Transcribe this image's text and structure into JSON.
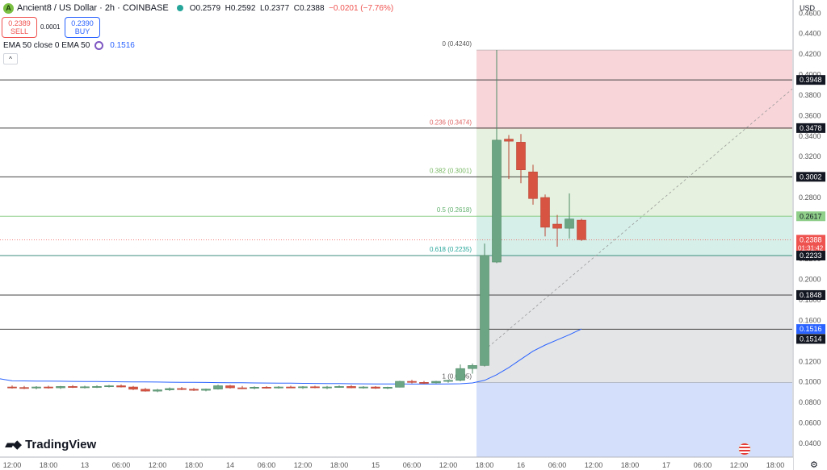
{
  "header": {
    "logo_letter": "A",
    "symbol": "Ancient8 / US Dollar · 2h · COINBASE",
    "open": "O0.2579",
    "high": "H0.2592",
    "low": "L0.2377",
    "close": "C0.2388",
    "change": "−0.0201 (−7.76%)"
  },
  "trade": {
    "sell_price": "0.2389",
    "sell_label": "SELL",
    "spread": "0.0001",
    "buy_price": "0.2390",
    "buy_label": "BUY"
  },
  "indicator": {
    "label": "EMA 50 close 0 EMA 50",
    "value": "0.1516"
  },
  "icons": [
    "eye-icon",
    "chevron-up-icon",
    "settings-icon",
    "flag-icon"
  ],
  "branding": {
    "name": "TradingView"
  },
  "currency": "USD",
  "colors": {
    "up": "#6ba583",
    "down": "#d75442",
    "ema": "#2962ff",
    "accent": "#2962ff"
  },
  "chart_data": {
    "type": "candlestick",
    "title": "Ancient8 / US Dollar · 2h · COINBASE",
    "y_unit": "USD",
    "ylim": [
      0.0297,
      0.4697
    ],
    "y_ticks": [
      "0.4600",
      "0.4400",
      "0.4200",
      "0.4000",
      "0.3800",
      "0.3600",
      "0.3400",
      "0.3200",
      "0.3000",
      "0.2800",
      "0.2600",
      "0.2400",
      "0.2200",
      "0.2000",
      "0.1800",
      "0.1600",
      "0.1400",
      "0.1200",
      "0.1000",
      "0.0800",
      "0.0600",
      "0.0400"
    ],
    "x_ticks": [
      "12:00",
      "18:00",
      "13",
      "06:00",
      "12:00",
      "18:00",
      "14",
      "06:00",
      "12:00",
      "18:00",
      "15",
      "06:00",
      "12:00",
      "18:00",
      "16",
      "06:00",
      "12:00",
      "18:00",
      "17",
      "06:00",
      "12:00",
      "18:00"
    ],
    "candles": [
      {
        "o": 0.095,
        "h": 0.0965,
        "l": 0.0935,
        "c": 0.0945
      },
      {
        "o": 0.0945,
        "h": 0.096,
        "l": 0.093,
        "c": 0.094
      },
      {
        "o": 0.094,
        "h": 0.0958,
        "l": 0.0928,
        "c": 0.095
      },
      {
        "o": 0.095,
        "h": 0.0962,
        "l": 0.0935,
        "c": 0.0942
      },
      {
        "o": 0.0942,
        "h": 0.096,
        "l": 0.0932,
        "c": 0.0955
      },
      {
        "o": 0.0955,
        "h": 0.0968,
        "l": 0.094,
        "c": 0.0948
      },
      {
        "o": 0.0948,
        "h": 0.0962,
        "l": 0.0936,
        "c": 0.0952
      },
      {
        "o": 0.0952,
        "h": 0.0966,
        "l": 0.094,
        "c": 0.0955
      },
      {
        "o": 0.0955,
        "h": 0.097,
        "l": 0.0945,
        "c": 0.0962
      },
      {
        "o": 0.0962,
        "h": 0.0975,
        "l": 0.0945,
        "c": 0.095
      },
      {
        "o": 0.095,
        "h": 0.096,
        "l": 0.092,
        "c": 0.0928
      },
      {
        "o": 0.0928,
        "h": 0.094,
        "l": 0.0905,
        "c": 0.091
      },
      {
        "o": 0.091,
        "h": 0.0932,
        "l": 0.09,
        "c": 0.0922
      },
      {
        "o": 0.0922,
        "h": 0.0945,
        "l": 0.0912,
        "c": 0.0935
      },
      {
        "o": 0.0935,
        "h": 0.095,
        "l": 0.092,
        "c": 0.0928
      },
      {
        "o": 0.0928,
        "h": 0.094,
        "l": 0.0912,
        "c": 0.0918
      },
      {
        "o": 0.0918,
        "h": 0.0935,
        "l": 0.0908,
        "c": 0.093
      },
      {
        "o": 0.093,
        "h": 0.0972,
        "l": 0.0925,
        "c": 0.0962
      },
      {
        "o": 0.0962,
        "h": 0.097,
        "l": 0.0935,
        "c": 0.0942
      },
      {
        "o": 0.0942,
        "h": 0.096,
        "l": 0.093,
        "c": 0.0938
      },
      {
        "o": 0.0938,
        "h": 0.0956,
        "l": 0.0928,
        "c": 0.0948
      },
      {
        "o": 0.0948,
        "h": 0.0958,
        "l": 0.0936,
        "c": 0.0944
      },
      {
        "o": 0.0944,
        "h": 0.0958,
        "l": 0.0935,
        "c": 0.095
      },
      {
        "o": 0.095,
        "h": 0.0962,
        "l": 0.094,
        "c": 0.0945
      },
      {
        "o": 0.0945,
        "h": 0.0958,
        "l": 0.0932,
        "c": 0.0952
      },
      {
        "o": 0.0952,
        "h": 0.0962,
        "l": 0.0938,
        "c": 0.0944
      },
      {
        "o": 0.0944,
        "h": 0.096,
        "l": 0.093,
        "c": 0.095
      },
      {
        "o": 0.095,
        "h": 0.0965,
        "l": 0.0942,
        "c": 0.0955
      },
      {
        "o": 0.0955,
        "h": 0.0968,
        "l": 0.0938,
        "c": 0.0942
      },
      {
        "o": 0.0942,
        "h": 0.0958,
        "l": 0.0935,
        "c": 0.095
      },
      {
        "o": 0.095,
        "h": 0.0958,
        "l": 0.0932,
        "c": 0.0938
      },
      {
        "o": 0.0938,
        "h": 0.0952,
        "l": 0.093,
        "c": 0.0948
      },
      {
        "o": 0.0948,
        "h": 0.101,
        "l": 0.0945,
        "c": 0.1005
      },
      {
        "o": 0.1005,
        "h": 0.102,
        "l": 0.0985,
        "c": 0.0995
      },
      {
        "o": 0.0995,
        "h": 0.1008,
        "l": 0.098,
        "c": 0.099
      },
      {
        "o": 0.099,
        "h": 0.101,
        "l": 0.0985,
        "c": 0.1005
      },
      {
        "o": 0.1005,
        "h": 0.102,
        "l": 0.0992,
        "c": 0.1015
      },
      {
        "o": 0.1015,
        "h": 0.117,
        "l": 0.1005,
        "c": 0.113
      },
      {
        "o": 0.113,
        "h": 0.118,
        "l": 0.108,
        "c": 0.116
      },
      {
        "o": 0.116,
        "h": 0.235,
        "l": 0.115,
        "c": 0.2235
      },
      {
        "o": 0.217,
        "h": 0.424,
        "l": 0.216,
        "c": 0.336
      },
      {
        "o": 0.337,
        "h": 0.341,
        "l": 0.298,
        "c": 0.335
      },
      {
        "o": 0.334,
        "h": 0.342,
        "l": 0.294,
        "c": 0.307
      },
      {
        "o": 0.305,
        "h": 0.312,
        "l": 0.273,
        "c": 0.279
      },
      {
        "o": 0.28,
        "h": 0.283,
        "l": 0.242,
        "c": 0.251
      },
      {
        "o": 0.254,
        "h": 0.263,
        "l": 0.232,
        "c": 0.25
      },
      {
        "o": 0.25,
        "h": 0.284,
        "l": 0.24,
        "c": 0.259
      },
      {
        "o": 0.2579,
        "h": 0.2592,
        "l": 0.2377,
        "c": 0.2388
      }
    ],
    "ema50": [
      0.101,
      0.1009,
      0.1008,
      0.1007,
      0.1006,
      0.1005,
      0.1004,
      0.1003,
      0.1002,
      0.1001,
      0.1,
      0.0999,
      0.0998,
      0.0997,
      0.0996,
      0.0995,
      0.0994,
      0.0993,
      0.0992,
      0.0991,
      0.099,
      0.0989,
      0.0988,
      0.0987,
      0.0986,
      0.0985,
      0.0984,
      0.0983,
      0.0982,
      0.0981,
      0.098,
      0.098,
      0.098,
      0.0979,
      0.0979,
      0.0979,
      0.098,
      0.0982,
      0.099,
      0.1015,
      0.107,
      0.114,
      0.122,
      0.13,
      0.136,
      0.141,
      0.146,
      0.1516
    ],
    "horizontal_lines": [
      0.3948,
      0.3478,
      0.3002,
      0.2617,
      0.2233,
      0.1848,
      0.1514
    ],
    "fibonacci": [
      {
        "level": "0",
        "value": 0.424,
        "label": "0 (0.4240)"
      },
      {
        "level": "0.236",
        "value": 0.3474,
        "label": "0.236 (0.3474)"
      },
      {
        "level": "0.382",
        "value": 0.3001,
        "label": "0.382 (0.3001)"
      },
      {
        "level": "0.5",
        "value": 0.2618,
        "label": "0.5 (0.2618)"
      },
      {
        "level": "0.618",
        "value": 0.2235,
        "label": "0.618 (0.2235)"
      },
      {
        "level": "1",
        "value": 0.0995,
        "label": "1 (0.0995)"
      }
    ],
    "price_tags": [
      {
        "value": 0.3948,
        "text": "0.3948",
        "style": "dark"
      },
      {
        "value": 0.3478,
        "text": "0.3478",
        "style": "dark"
      },
      {
        "value": 0.3002,
        "text": "0.3002",
        "style": "dark"
      },
      {
        "value": 0.2617,
        "text": "0.2617",
        "style": "green"
      },
      {
        "value": 0.2388,
        "text": "0.2388",
        "sub": "01:31:42",
        "style": "red"
      },
      {
        "value": 0.2233,
        "text": "0.2233",
        "style": "dark"
      },
      {
        "value": 0.1848,
        "text": "0.1848",
        "style": "dark"
      },
      {
        "value": 0.1516,
        "text": "0.1516",
        "style": "blue"
      },
      {
        "value": 0.1514,
        "text": "0.1514",
        "style": "dark"
      }
    ]
  }
}
